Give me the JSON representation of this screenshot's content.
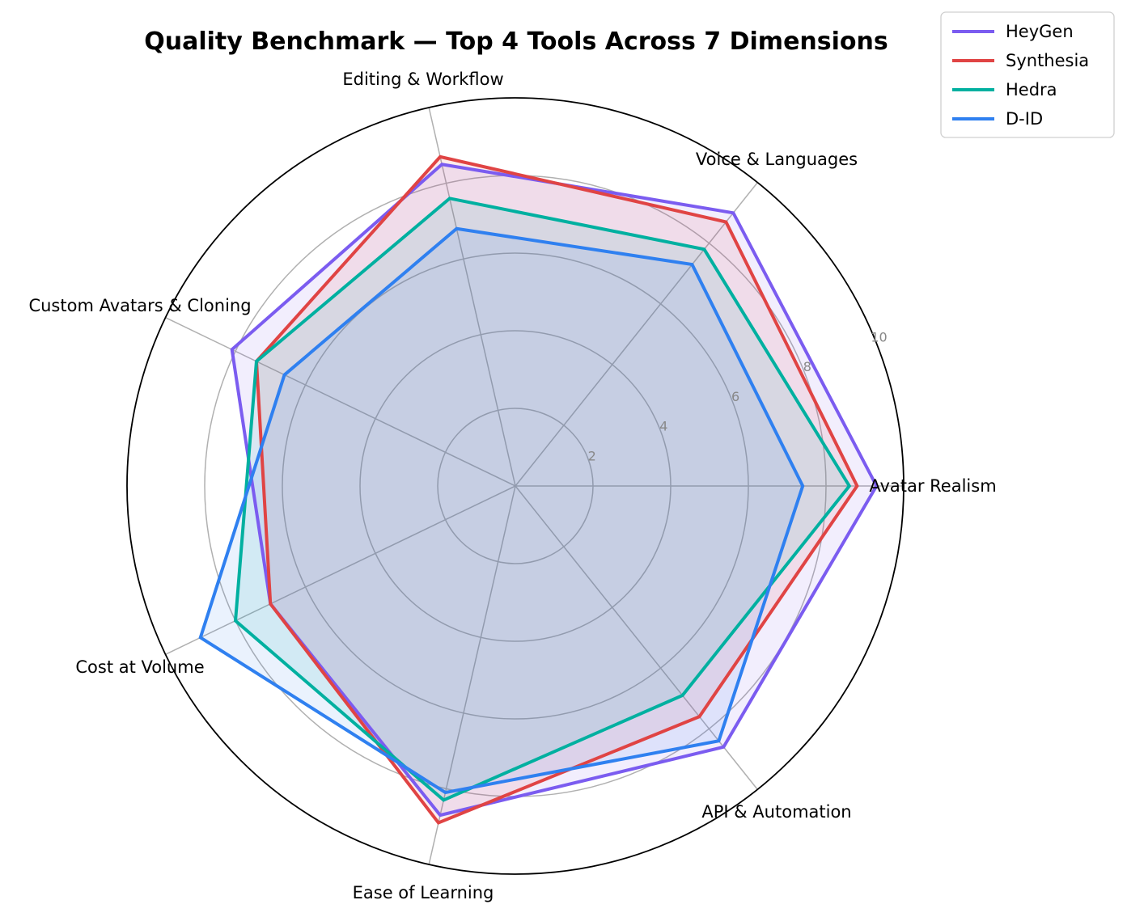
{
  "chart_data": {
    "type": "radar",
    "title": "Quality Benchmark — Top 4 Tools Across 7 Dimensions",
    "categories": [
      "Avatar Realism",
      "Voice & Languages",
      "Editing & Workflow",
      "Custom Avatars & Cloning",
      "Cost at Volume",
      "Ease of Learning",
      "API & Automation"
    ],
    "rlim": [
      0,
      10
    ],
    "rticks": [
      2,
      4,
      6,
      8,
      10
    ],
    "grid": true,
    "legend_position": "top-right",
    "series": [
      {
        "name": "HeyGen",
        "color": "#7b5cf0",
        "values": [
          9.3,
          9.0,
          8.5,
          8.1,
          7.0,
          8.7,
          8.6
        ]
      },
      {
        "name": "Synthesia",
        "color": "#e04444",
        "values": [
          8.8,
          8.7,
          8.7,
          7.4,
          7.0,
          8.9,
          7.6
        ]
      },
      {
        "name": "Hedra",
        "color": "#00b0a0",
        "values": [
          8.6,
          7.8,
          7.6,
          7.4,
          8.0,
          8.3,
          6.9
        ]
      },
      {
        "name": "D-ID",
        "color": "#2f80f0",
        "values": [
          7.4,
          7.3,
          6.8,
          6.6,
          9.0,
          8.1,
          8.4
        ]
      }
    ]
  }
}
